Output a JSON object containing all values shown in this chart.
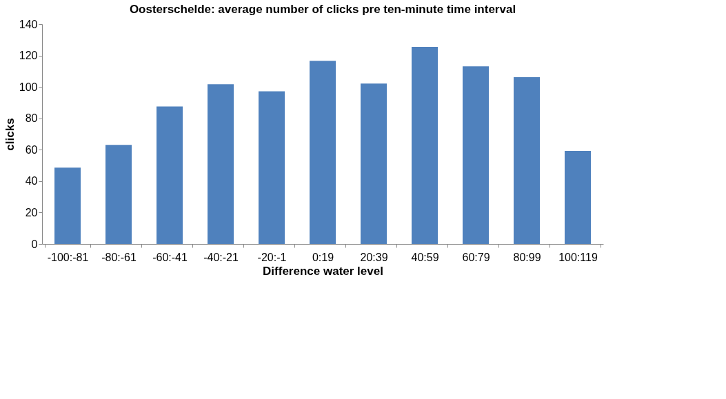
{
  "chart_data": {
    "type": "bar",
    "title": "Oosterschelde: average number of clicks pre ten-minute time interval",
    "xlabel": "Difference water level",
    "ylabel": "clicks",
    "categories": [
      "-100:-81",
      "-80:-61",
      "-60:-41",
      "-40:-21",
      "-20:-1",
      "0:19",
      "20:39",
      "40:59",
      "60:79",
      "80:99",
      "100:119"
    ],
    "values": [
      48.6,
      63.1,
      87.6,
      101.7,
      97.2,
      116.6,
      102.1,
      125.5,
      113.1,
      106.2,
      59.3
    ],
    "color": "#4f81bd",
    "ylim": [
      0,
      140
    ],
    "yticks": [
      0,
      20,
      40,
      60,
      80,
      100,
      120,
      140
    ],
    "grid": false
  }
}
